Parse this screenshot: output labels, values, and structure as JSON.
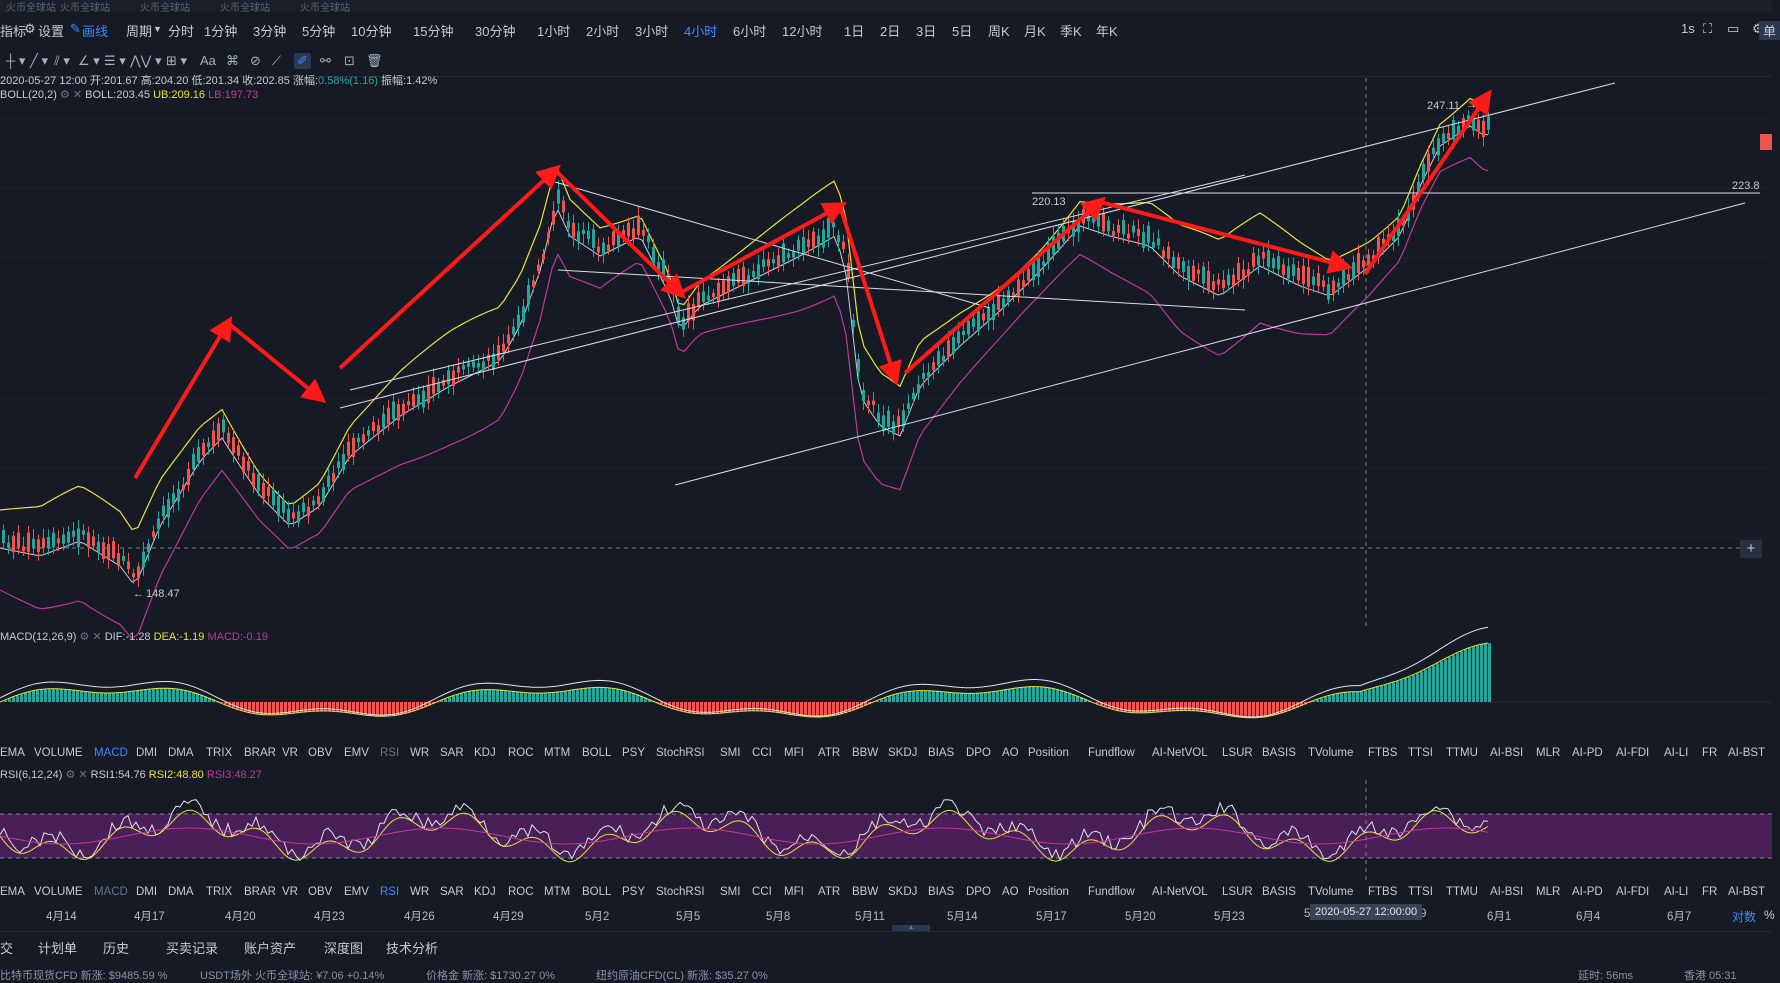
{
  "tabs": [
    "火币全球站",
    "火币全球站",
    "火币全球站",
    "火币全球站",
    "火币全球站"
  ],
  "topbar": {
    "indicator_label": "指标",
    "settings_label": "设置",
    "draw_label": "画线",
    "period_label": "周期",
    "intervals": [
      "分时",
      "1分钟",
      "3分钟",
      "5分钟",
      "10分钟",
      "15分钟",
      "30分钟",
      "1小时",
      "2小时",
      "3小时",
      "4小时",
      "6小时",
      "12小时",
      "1日",
      "2日",
      "3日",
      "5日",
      "周K",
      "月K",
      "季K",
      "年K"
    ],
    "active_interval": "4小时",
    "refresh": "1s",
    "right_label": "单"
  },
  "ohlc": {
    "time": "2020-05-27 12:00",
    "open": "开:201.67",
    "high": "高:204.20",
    "low": "低:201.34",
    "close": "收:202.85",
    "change_label": "涨幅:",
    "change_value": "0.58%(1.16)",
    "amplitude": "振幅:1.42%"
  },
  "boll": {
    "label": "BOLL(20,2)",
    "mid": "BOLL:203.45",
    "ub": "UB:209.16",
    "lb": "LB:197.73"
  },
  "price_labels": {
    "high": "247.11",
    "level": "220.13",
    "low": "148.47",
    "right": "223.8"
  },
  "macd": {
    "label": "MACD(12,26,9)",
    "dif": "DIF:-1.28",
    "dea": "DEA:-1.19",
    "macd": "MACD:-0.19"
  },
  "rsi": {
    "label": "RSI(6,12,24)",
    "rsi1": "RSI1:54.76",
    "rsi2": "RSI2:48.80",
    "rsi3": "RSI3:48.27"
  },
  "indicators": [
    "EMA",
    "VOLUME",
    "MACD",
    "DMI",
    "DMA",
    "TRIX",
    "BRAR",
    "VR",
    "OBV",
    "EMV",
    "RSI",
    "WR",
    "SAR",
    "KDJ",
    "ROC",
    "MTM",
    "BOLL",
    "PSY",
    "StochRSI",
    "SMI",
    "CCI",
    "MFI",
    "ATR",
    "BBW",
    "SKDJ",
    "BIAS",
    "DPO",
    "AO",
    "Position",
    "Fundflow",
    "AI-NetVOL",
    "LSUR",
    "BASIS",
    "TVolume",
    "FTBS",
    "TTSI",
    "TTMU",
    "AI-BSI",
    "MLR",
    "AI-PD",
    "AI-FDI",
    "AI-LI",
    "FR",
    "AI-BST"
  ],
  "x_axis": [
    "4月14",
    "4月17",
    "4月20",
    "4月23",
    "4月26",
    "4月29",
    "5月2",
    "5月5",
    "5月8",
    "5月11",
    "5月14",
    "5月17",
    "5月20",
    "5月23",
    "5",
    "9",
    "6月1",
    "6月4",
    "6月7"
  ],
  "crosshair_time": "2020-05-27 12:00:00",
  "axis_mode": "对数",
  "axis_pct": "%",
  "bottom_tabs": [
    "交",
    "计划单",
    "历史",
    "买卖记录",
    "账户资产",
    "深度图",
    "技术分析"
  ],
  "ticker": [
    "比特币现货CFD 新涨: $9485.59 %",
    "USDT场外 火币全球站: ¥7.06 +0.14%",
    "价格金 新涨: $1730.27 0%",
    "纽约原油CFD(CL) 新涨: $35.27 0%",
    "延时: 56ms",
    "香港 05:31"
  ],
  "colors": {
    "bg": "#161a25",
    "up": "#26a69a",
    "down": "#ef5350",
    "accent": "#3d8bfd",
    "arrow": "#ff1a1a",
    "ub": "#e8e33a",
    "lb": "#c0399c"
  }
}
